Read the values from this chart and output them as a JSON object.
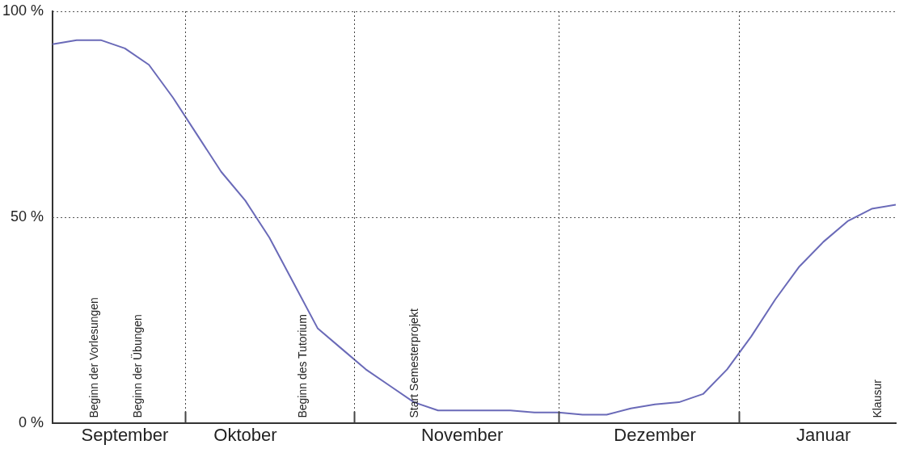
{
  "chart_data": {
    "type": "line",
    "categories": [
      null,
      null,
      null,
      "September",
      null,
      null,
      null,
      null,
      "Oktober",
      null,
      null,
      null,
      null,
      null,
      null,
      null,
      null,
      "November",
      null,
      null,
      null,
      null,
      null,
      null,
      null,
      "Dezember",
      null,
      null,
      null,
      null,
      null,
      null,
      "Januar",
      null,
      null,
      null
    ],
    "series": [
      {
        "color": "#6a6ab8",
        "values": [
          92,
          93,
          93,
          91,
          87,
          79,
          70,
          61,
          54,
          45,
          34,
          23,
          18,
          13,
          9,
          5,
          3,
          3,
          3,
          3,
          2.5,
          2.5,
          2,
          2,
          3.5,
          4.5,
          5,
          7,
          13,
          21,
          30,
          38,
          44,
          49,
          52,
          53
        ]
      }
    ],
    "ylim": [
      0,
      100
    ],
    "yticks": [
      {
        "value": 0,
        "label": "0 %"
      },
      {
        "value": 50,
        "label": "50 %"
      },
      {
        "value": 100,
        "label": "100 %"
      }
    ],
    "marker": "none",
    "line_style": "solid",
    "legend": false,
    "ref_lines": [
      {
        "axis": "y",
        "value": 50,
        "line_style": "dotted"
      },
      {
        "axis": "y",
        "value": 100,
        "line_style": "dotted"
      }
    ],
    "annotations": [
      "Beginn der Vorlesungen",
      "Beginn der Übungen",
      "Beginn des Tutorium",
      "Start Semesterprojekt",
      "Klausur"
    ]
  }
}
